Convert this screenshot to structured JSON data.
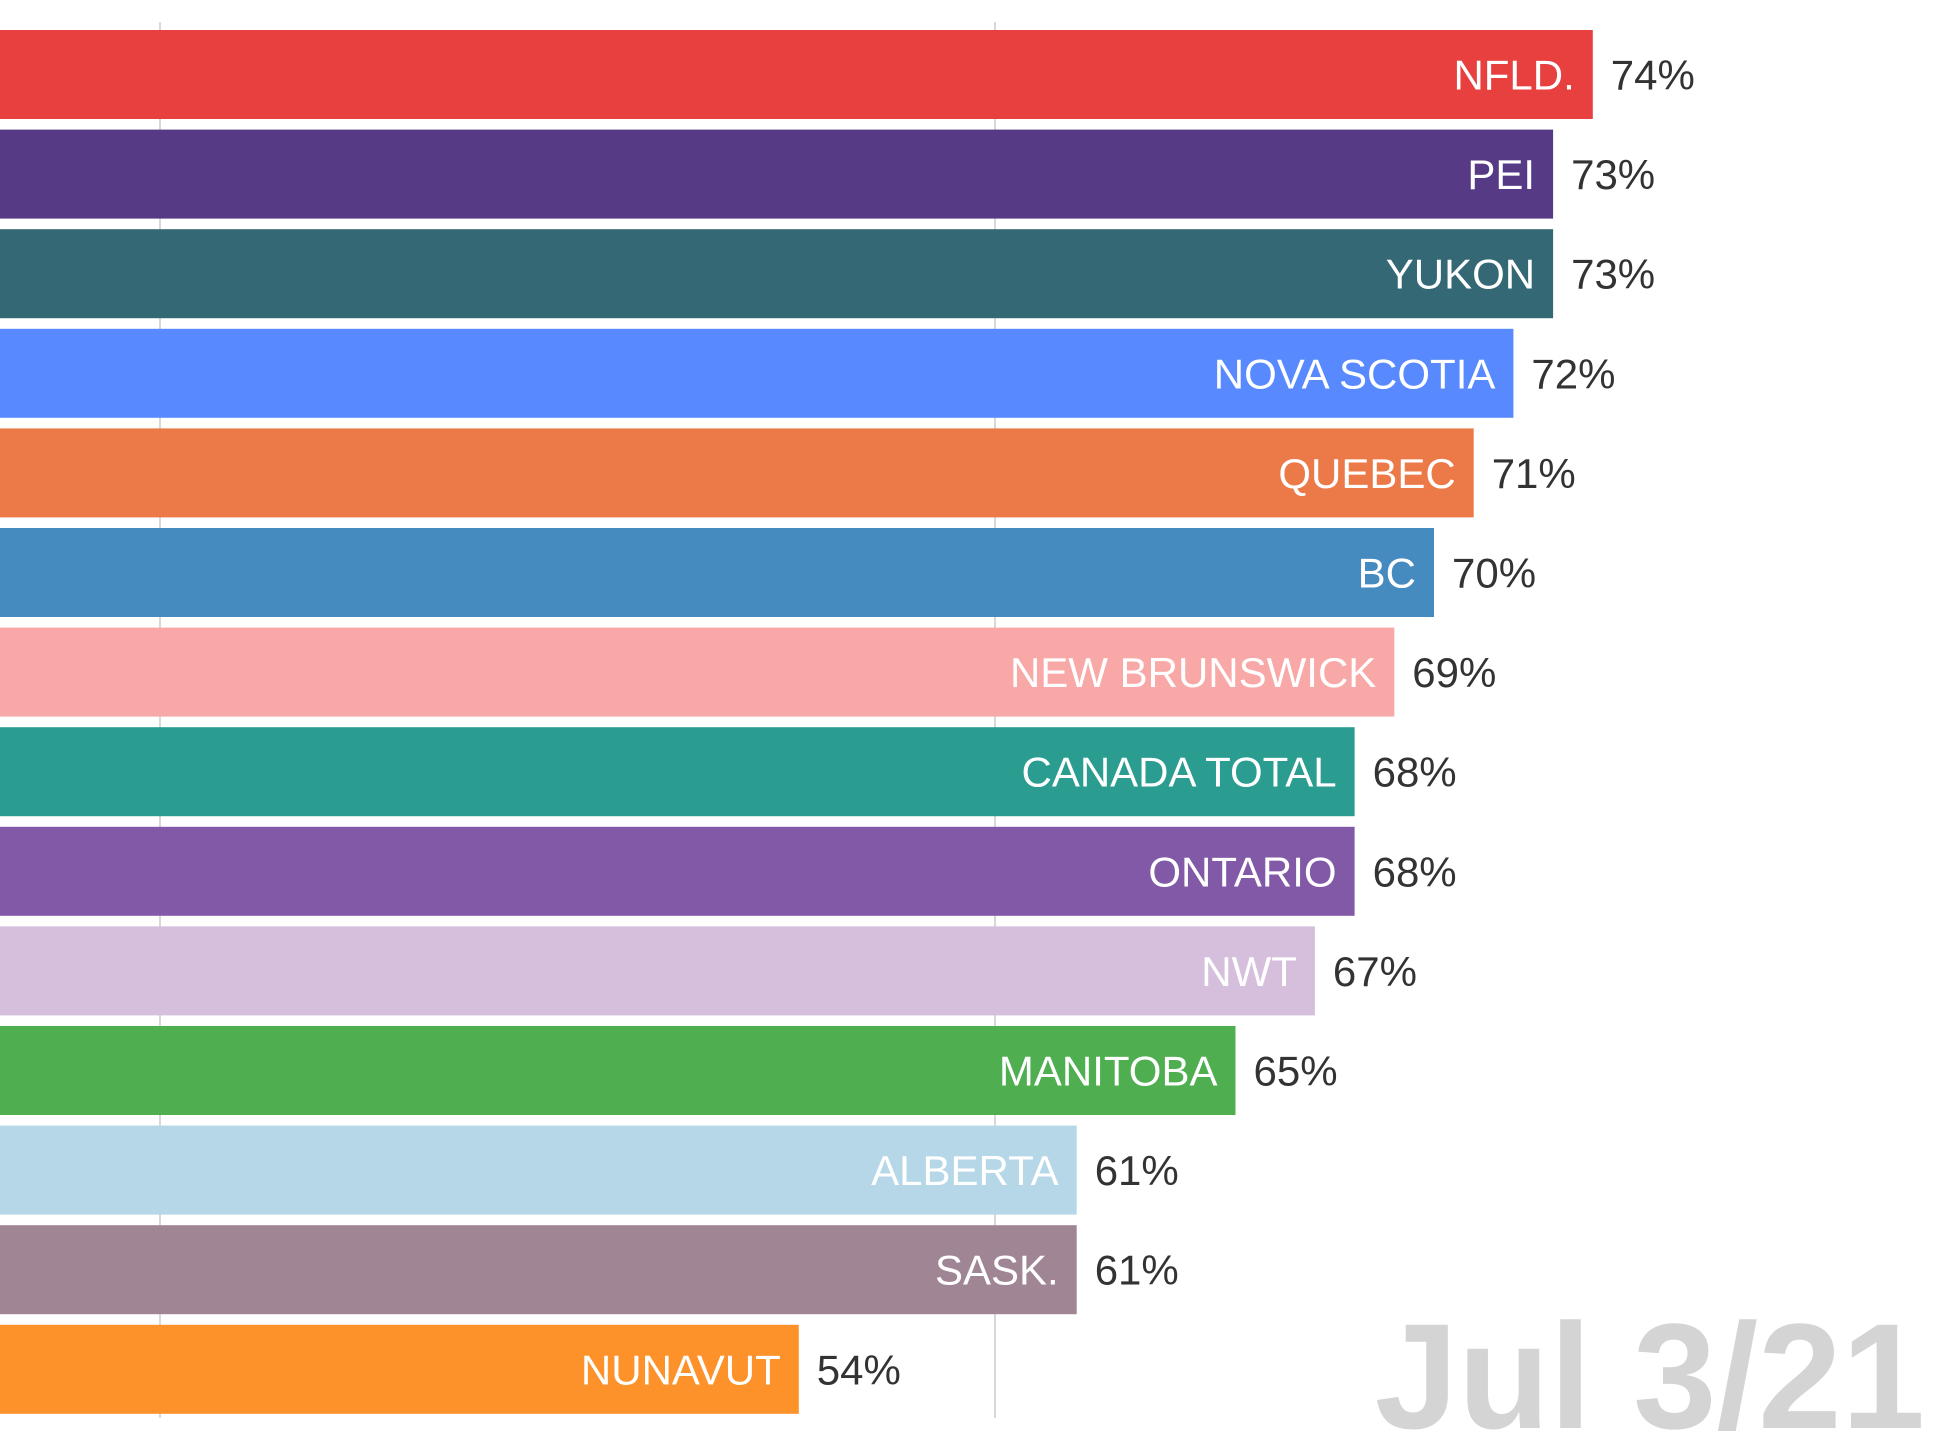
{
  "chart_data": {
    "type": "bar",
    "orientation": "horizontal",
    "categories": [
      "NFLD.",
      "PEI",
      "YUKON",
      "NOVA SCOTIA",
      "QUEBEC",
      "BC",
      "NEW BRUNSWICK",
      "CANADA TOTAL",
      "ONTARIO",
      "NWT",
      "MANITOBA",
      "ALBERTA",
      "SASK.",
      "NUNAVUT"
    ],
    "values": [
      74,
      73,
      73,
      72,
      71,
      70,
      69,
      68,
      68,
      67,
      65,
      61,
      61,
      54
    ],
    "value_labels": [
      "74%",
      "73%",
      "73%",
      "72%",
      "71%",
      "70%",
      "69%",
      "68%",
      "68%",
      "67%",
      "65%",
      "61%",
      "61%",
      "54%"
    ],
    "colors": [
      "#e8403f",
      "#563a85",
      "#336874",
      "#5889fe",
      "#ec7a48",
      "#458bc0",
      "#f8a8a6",
      "#2a9c90",
      "#8159a7",
      "#d5bfdc",
      "#4fae4f",
      "#b5d7e7",
      "#a08595",
      "#fe922a"
    ],
    "unit": "%",
    "grid": true,
    "date": "Jul 3/21"
  }
}
